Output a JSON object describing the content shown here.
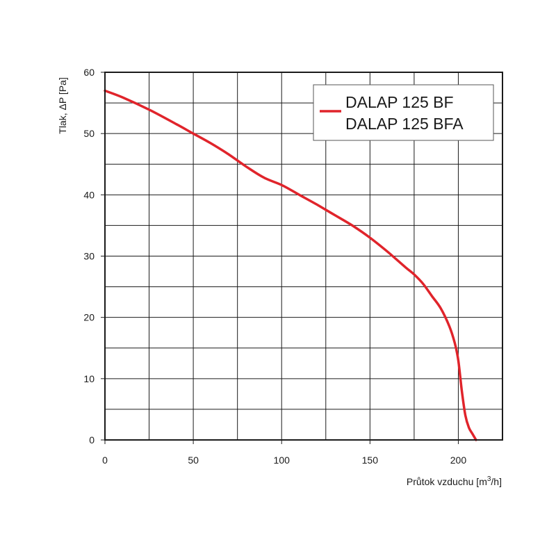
{
  "chart_data": {
    "type": "line",
    "title": "",
    "xlabel": "Průtok vzduchu [m³/h]",
    "xlabel_main": "Průtok vzduchu [m",
    "xlabel_sup": "3",
    "xlabel_end": "/h]",
    "ylabel": "Tlak, ΔP [Pa]",
    "xlim": [
      0,
      225
    ],
    "ylim": [
      0,
      60
    ],
    "x_ticks": [
      0,
      50,
      100,
      150,
      200
    ],
    "y_ticks": [
      0,
      10,
      20,
      30,
      40,
      50,
      60
    ],
    "grid": true,
    "grid_x_step": 25,
    "grid_y_step": 5,
    "legend": {
      "placement": "top-right",
      "entries": [
        "DALAP 125 BF",
        "DALAP 125 BFA"
      ]
    },
    "series": [
      {
        "color": "#e0242b",
        "x": [
          0,
          10,
          25,
          40,
          50,
          60,
          70,
          80,
          90,
          100,
          110,
          120,
          130,
          140,
          150,
          160,
          170,
          175,
          180,
          185,
          190,
          195,
          198,
          200,
          202,
          204,
          206,
          208,
          210
        ],
        "y": [
          57,
          55.9,
          53.9,
          51.6,
          50,
          48.4,
          46.6,
          44.6,
          42.8,
          41.6,
          40,
          38.4,
          36.7,
          35,
          33,
          30.7,
          28.2,
          27,
          25.5,
          23.5,
          21.5,
          18.5,
          15.8,
          13,
          8,
          4,
          2,
          1,
          0
        ]
      }
    ]
  }
}
